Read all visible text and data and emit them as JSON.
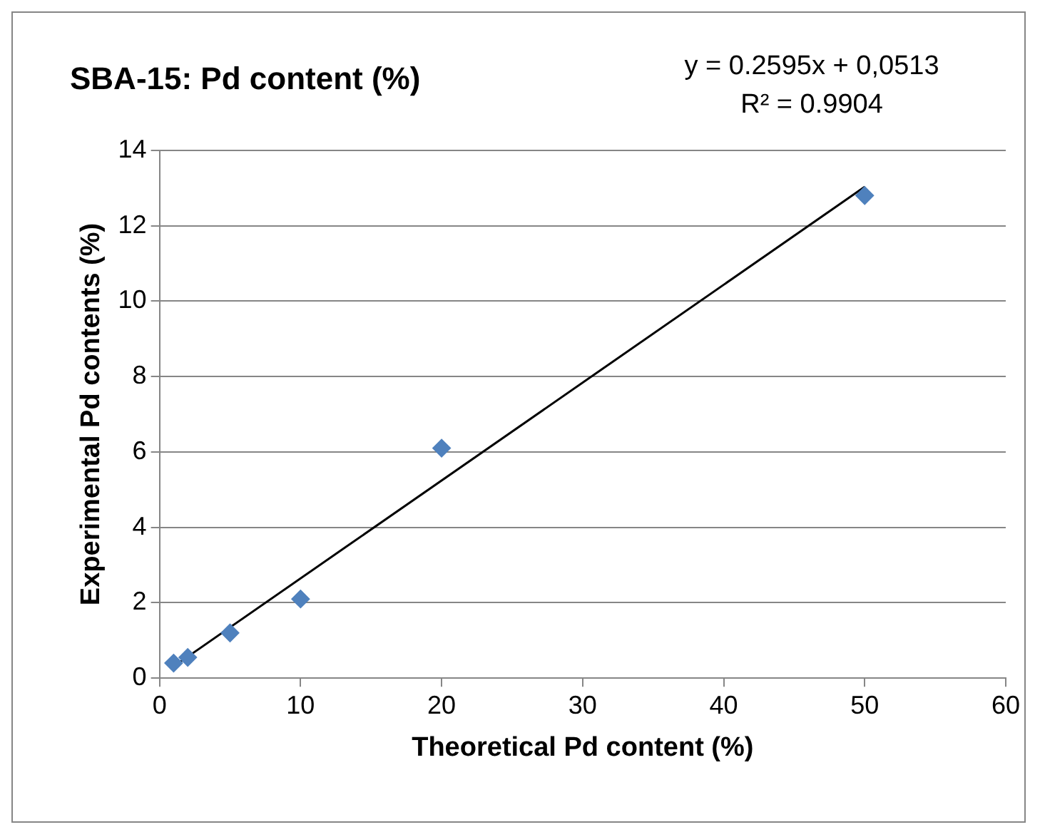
{
  "chart_data": {
    "type": "scatter",
    "title": "SBA-15: Pd content (%)",
    "xlabel": "Theoretical Pd content (%)",
    "ylabel": "Experimental Pd contents (%)",
    "annotations": [
      "y = 0.2595x + 0,0513",
      "R² = 0.9904"
    ],
    "series": [
      {
        "color": "#4f81bd",
        "marker": "diamond",
        "x": [
          1,
          2,
          5,
          10,
          20,
          50
        ],
        "values": [
          0.4,
          0.55,
          1.2,
          2.1,
          6.1,
          12.8
        ]
      },
      {
        "type": "line",
        "color": "#000000",
        "marker": "none",
        "line_style": "solid",
        "x": [
          1,
          50
        ],
        "values": [
          0.31,
          13.03
        ]
      }
    ],
    "xlim": [
      0,
      60
    ],
    "xticks": [
      0,
      10,
      20,
      30,
      40,
      50,
      60
    ],
    "ylim": [
      0,
      14
    ],
    "yticks": [
      0,
      2,
      4,
      6,
      8,
      10,
      12,
      14
    ],
    "grid": "y",
    "legend": false
  }
}
